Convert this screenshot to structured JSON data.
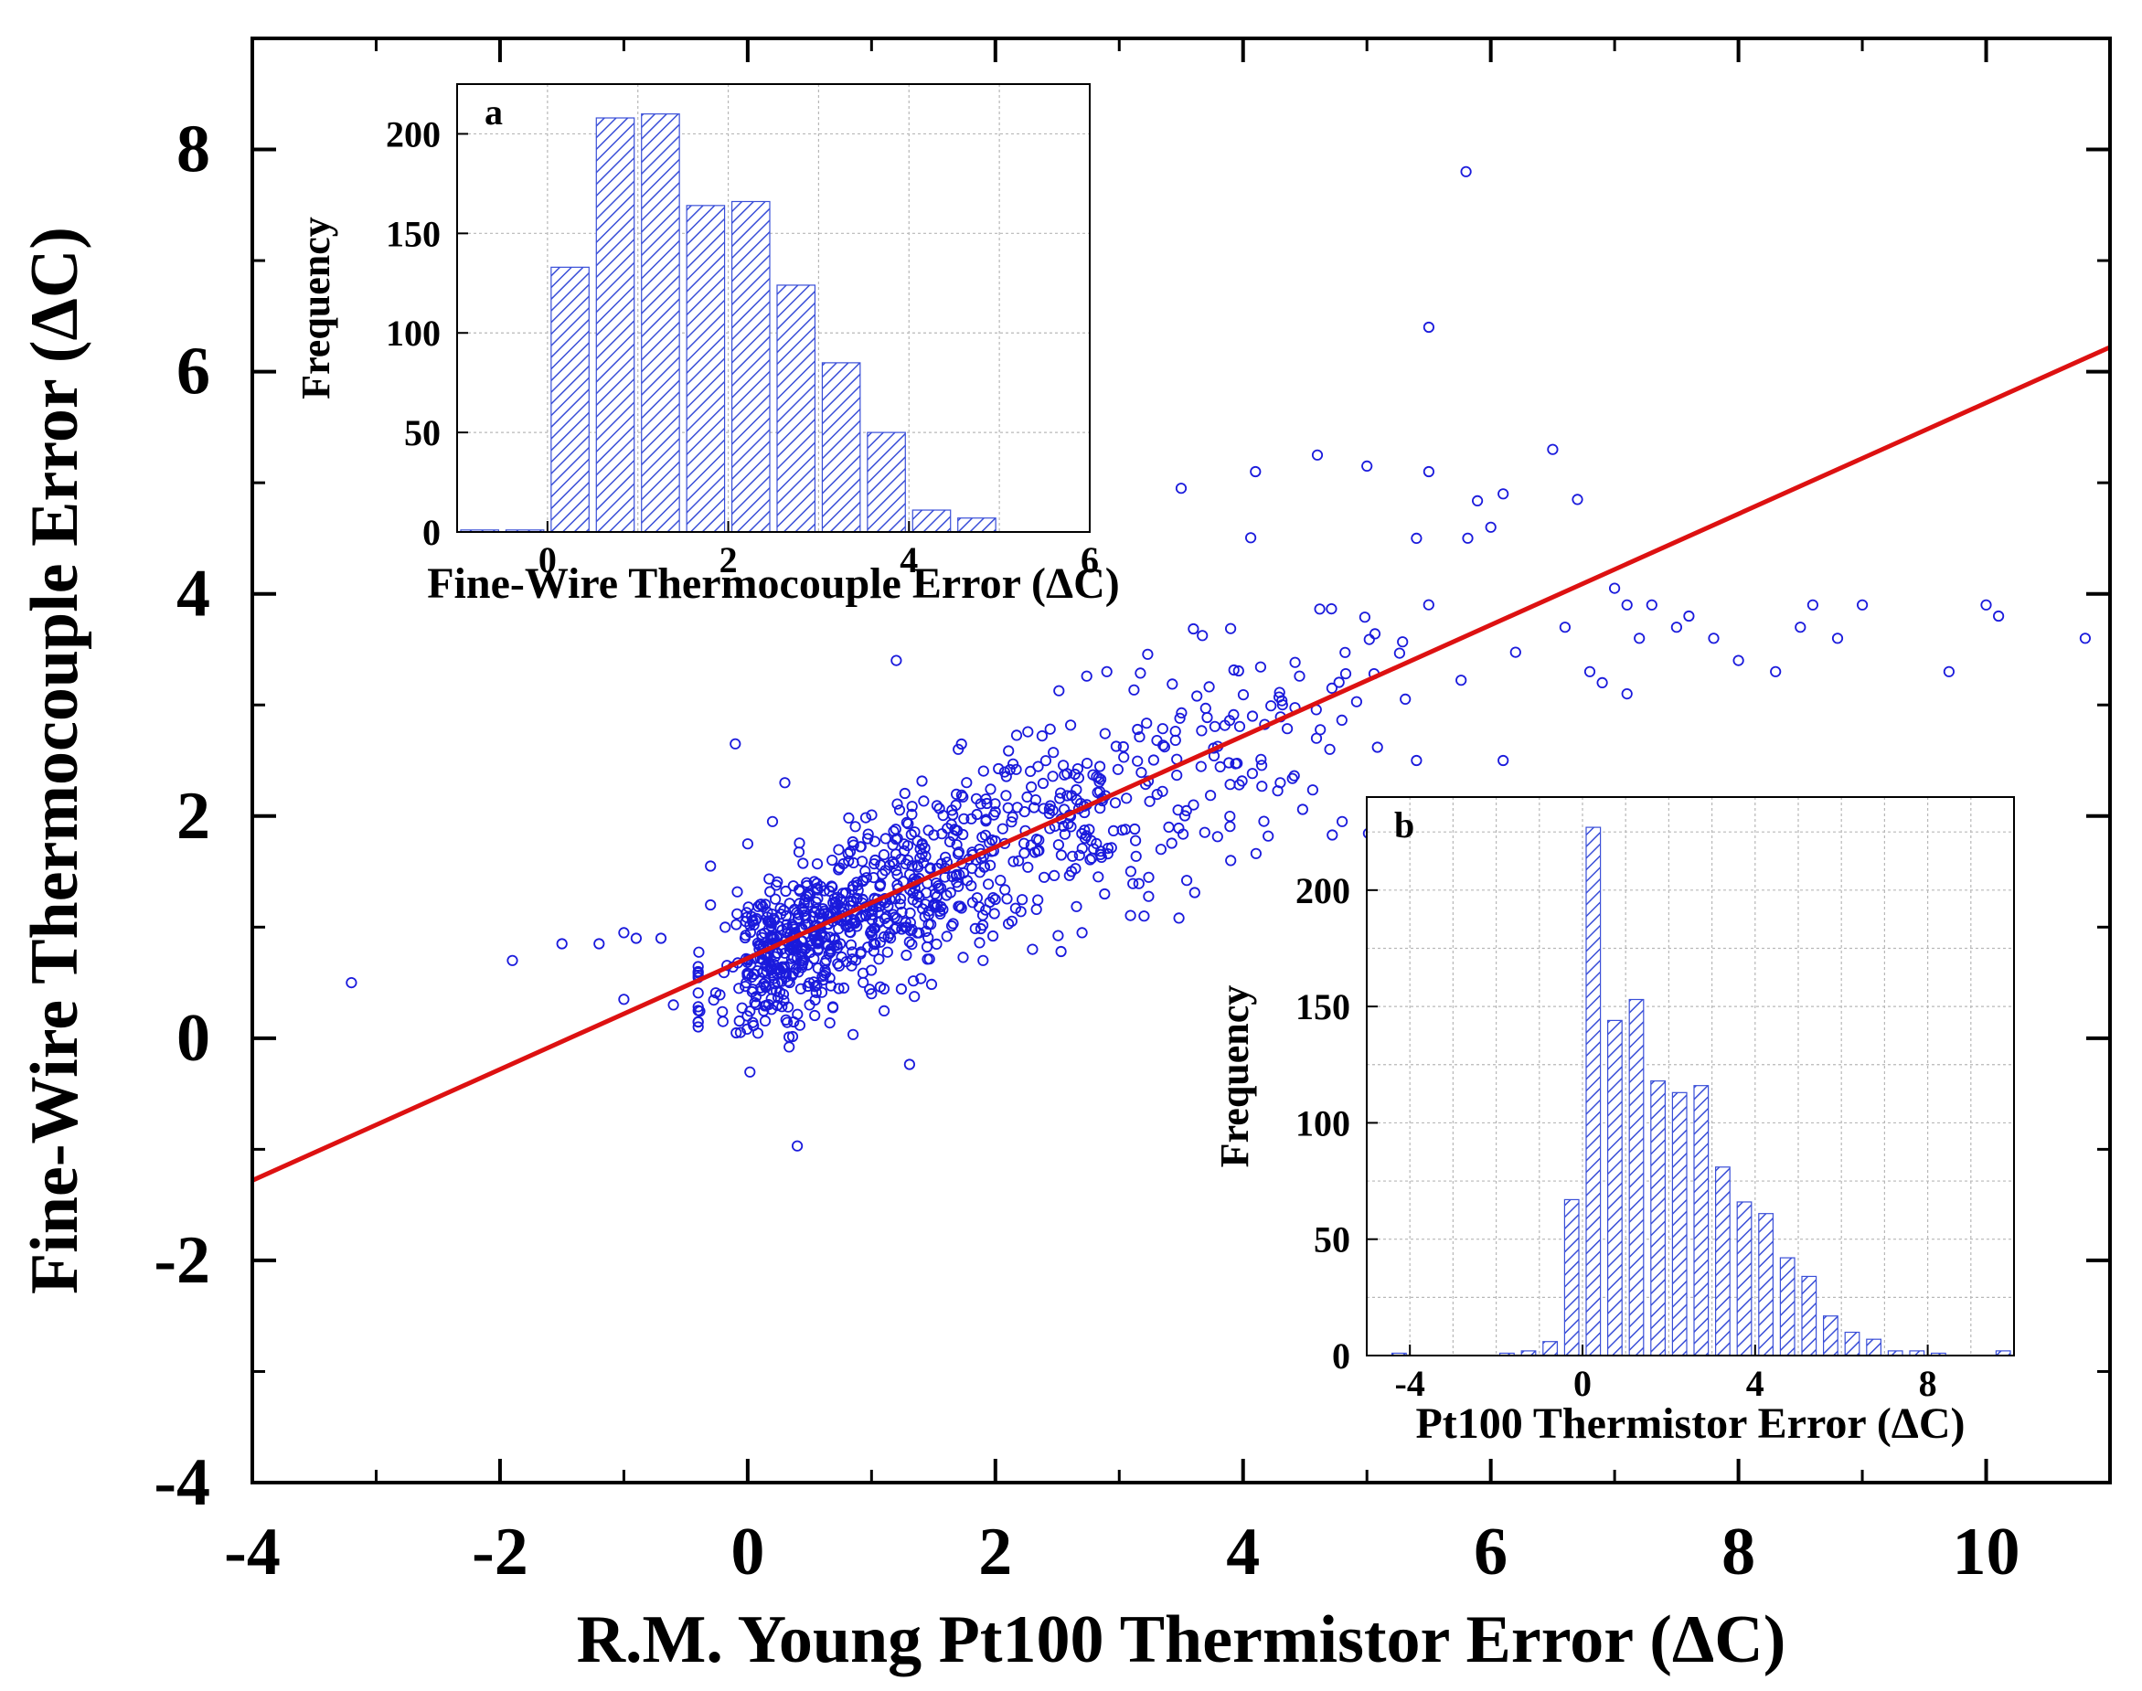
{
  "colors": {
    "points": "#1a1adc",
    "fit_line": "#dd1111",
    "hatch": "#3a4fd8",
    "frame": "#000000",
    "grid": "#b8b8b8"
  },
  "chart_data": [
    {
      "id": "main",
      "type": "scatter",
      "title": "",
      "xlabel": "R.M. Young Pt100 Thermistor Error (ΔC)",
      "ylabel": "Fine-Wire Thermocouple Error (ΔC)",
      "xlim": [
        -4,
        11
      ],
      "ylim": [
        -4,
        9
      ],
      "xticks": [
        -4,
        -2,
        0,
        2,
        4,
        6,
        8,
        10
      ],
      "xticks_minor": [
        -3,
        -1,
        1,
        3,
        5,
        7,
        9
      ],
      "yticks": [
        -4,
        -2,
        0,
        2,
        4,
        6,
        8
      ],
      "yticks_minor": [
        -3,
        -1,
        1,
        3,
        5,
        7
      ],
      "grid": false,
      "fit_line": {
        "slope": 0.5,
        "intercept": 0.72,
        "x_range": [
          -4,
          11
        ]
      },
      "cluster": {
        "n": 1000,
        "x_mean": 2.3,
        "x_sd": 1.45,
        "x_min": -0.4,
        "x_max": 6.2,
        "slope": 0.48,
        "intercept": 0.7,
        "noise_sd": 0.55
      },
      "points": [
        [
          -3.2,
          0.5
        ],
        [
          -1.9,
          0.7
        ],
        [
          -1.5,
          0.85
        ],
        [
          -1.2,
          0.85
        ],
        [
          -1.0,
          0.95
        ],
        [
          -0.9,
          0.9
        ],
        [
          -1.0,
          0.35
        ],
        [
          -0.7,
          0.9
        ],
        [
          -0.6,
          0.3
        ],
        [
          -0.3,
          1.55
        ],
        [
          -0.3,
          1.2
        ],
        [
          -0.2,
          0.15
        ],
        [
          -0.4,
          0.25
        ],
        [
          -0.1,
          2.65
        ],
        [
          0.4,
          -0.97
        ],
        [
          0.3,
          2.3
        ],
        [
          0.2,
          1.95
        ],
        [
          0.0,
          1.75
        ],
        [
          1.2,
          3.4
        ],
        [
          3.5,
          4.95
        ],
        [
          4.1,
          5.1
        ],
        [
          4.6,
          5.25
        ],
        [
          5.0,
          5.15
        ],
        [
          5.5,
          5.1
        ],
        [
          6.5,
          5.3
        ],
        [
          5.8,
          7.8
        ],
        [
          5.5,
          6.4
        ],
        [
          6.1,
          4.9
        ],
        [
          6.7,
          4.85
        ],
        [
          6.0,
          4.6
        ],
        [
          5.4,
          4.5
        ],
        [
          7.0,
          4.05
        ],
        [
          7.1,
          3.9
        ],
        [
          7.2,
          3.6
        ],
        [
          6.6,
          3.7
        ],
        [
          6.8,
          3.3
        ],
        [
          6.9,
          3.2
        ],
        [
          7.3,
          3.9
        ],
        [
          7.5,
          3.7
        ],
        [
          7.6,
          3.8
        ],
        [
          7.8,
          3.6
        ],
        [
          8.0,
          3.4
        ],
        [
          8.3,
          3.3
        ],
        [
          8.5,
          3.7
        ],
        [
          8.6,
          3.9
        ],
        [
          8.8,
          3.6
        ],
        [
          9.0,
          3.9
        ],
        [
          9.7,
          3.3
        ],
        [
          10.0,
          3.9
        ],
        [
          10.1,
          3.8
        ],
        [
          10.8,
          3.6
        ],
        [
          6.1,
          2.5
        ],
        [
          7.1,
          3.1
        ],
        [
          5.4,
          2.5
        ],
        [
          4.7,
          2.6
        ],
        [
          4.3,
          2.3
        ],
        [
          3.9,
          1.6
        ],
        [
          3.2,
          1.1
        ],
        [
          2.3,
          0.8
        ],
        [
          1.9,
          0.7
        ],
        [
          1.5,
          1.2
        ],
        [
          1.0,
          0.4
        ],
        [
          0.5,
          0.3
        ],
        [
          2.7,
          0.95
        ],
        [
          3.4,
          1.9
        ],
        [
          4.8,
          1.95
        ],
        [
          2.9,
          3.3
        ],
        [
          3.6,
          2.1
        ],
        [
          1.7,
          2.6
        ]
      ]
    },
    {
      "id": "inset_a",
      "type": "bar",
      "panel_label": "a",
      "xlabel": "Fine-Wire Thermocouple Error (ΔC)",
      "ylabel": "Frequency",
      "xlim": [
        -1,
        6
      ],
      "ylim": [
        0,
        225
      ],
      "xticks": [
        0,
        2,
        4,
        6
      ],
      "yticks": [
        0,
        50,
        100,
        150,
        200
      ],
      "grid": true,
      "bin_width": 0.5,
      "bin_centers": [
        -0.75,
        -0.25,
        0.25,
        0.75,
        1.25,
        1.75,
        2.25,
        2.75,
        3.25,
        3.75,
        4.25,
        4.75,
        5.25
      ],
      "values": [
        1,
        1,
        133,
        208,
        210,
        164,
        166,
        124,
        85,
        50,
        11,
        7,
        0
      ]
    },
    {
      "id": "inset_b",
      "type": "bar",
      "panel_label": "b",
      "xlabel": "Pt100 Thermistor Error (ΔC)",
      "ylabel": "Frequency",
      "xlim": [
        -5,
        10
      ],
      "ylim": [
        0,
        240
      ],
      "xticks": [
        -4,
        0,
        4,
        8
      ],
      "yticks": [
        0,
        50,
        100,
        150,
        200
      ],
      "grid": true,
      "bin_width": 0.5,
      "bin_centers": [
        -4.25,
        -3.75,
        -2.25,
        -1.75,
        -1.25,
        -0.75,
        -0.25,
        0.25,
        0.75,
        1.25,
        1.75,
        2.25,
        2.75,
        3.25,
        3.75,
        4.25,
        4.75,
        5.25,
        5.75,
        6.25,
        6.75,
        7.25,
        7.75,
        8.25,
        8.75,
        9.25,
        9.75
      ],
      "values": [
        1,
        0,
        0,
        1,
        2,
        6,
        67,
        227,
        144,
        153,
        118,
        113,
        116,
        81,
        66,
        61,
        42,
        34,
        17,
        10,
        7,
        2,
        2,
        1,
        0,
        0,
        2
      ]
    }
  ]
}
